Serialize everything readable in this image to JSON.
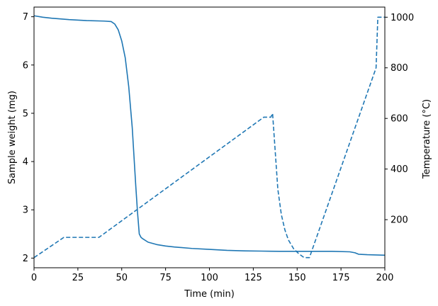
{
  "chart_data": {
    "type": "line",
    "title": "",
    "xlabel": "Time (min)",
    "ylabel": "Sample weight (mg)",
    "y2label": "Temperature (°C)",
    "xlim": [
      0,
      200
    ],
    "ylim": [
      1.8,
      7.2
    ],
    "y2lim": [
      10,
      1040
    ],
    "grid": false,
    "legend": "none",
    "xticks": [
      0,
      25,
      50,
      75,
      100,
      125,
      150,
      175,
      200
    ],
    "yticks": [
      2,
      3,
      4,
      5,
      6,
      7
    ],
    "y2ticks": [
      200,
      400,
      600,
      800,
      1000
    ],
    "color": "#1f77b4",
    "series": [
      {
        "axis": "left",
        "style": "solid",
        "x": [
          0,
          5,
          10,
          20,
          30,
          40,
          44,
          46,
          48,
          50,
          52,
          54,
          56,
          57,
          58,
          59,
          60,
          61,
          62,
          65,
          70,
          75,
          80,
          90,
          100,
          110,
          120,
          130,
          140,
          150,
          160,
          170,
          180,
          183,
          185,
          190,
          200
        ],
        "y": [
          7.02,
          6.99,
          6.97,
          6.94,
          6.92,
          6.91,
          6.9,
          6.85,
          6.73,
          6.5,
          6.15,
          5.55,
          4.7,
          4.1,
          3.5,
          2.95,
          2.5,
          2.43,
          2.4,
          2.33,
          2.28,
          2.25,
          2.23,
          2.2,
          2.18,
          2.16,
          2.15,
          2.145,
          2.14,
          2.14,
          2.14,
          2.14,
          2.13,
          2.11,
          2.08,
          2.07,
          2.06
        ]
      },
      {
        "axis": "right",
        "style": "dashed",
        "x": [
          0,
          17,
          37,
          131,
          135,
          136,
          137,
          139,
          141,
          143,
          145,
          148,
          151,
          154,
          157,
          195,
          196,
          200
        ],
        "y": [
          50,
          130,
          130,
          605,
          605,
          620,
          520,
          320,
          220,
          160,
          120,
          85,
          65,
          50,
          50,
          800,
          1000,
          1000
        ]
      }
    ]
  }
}
